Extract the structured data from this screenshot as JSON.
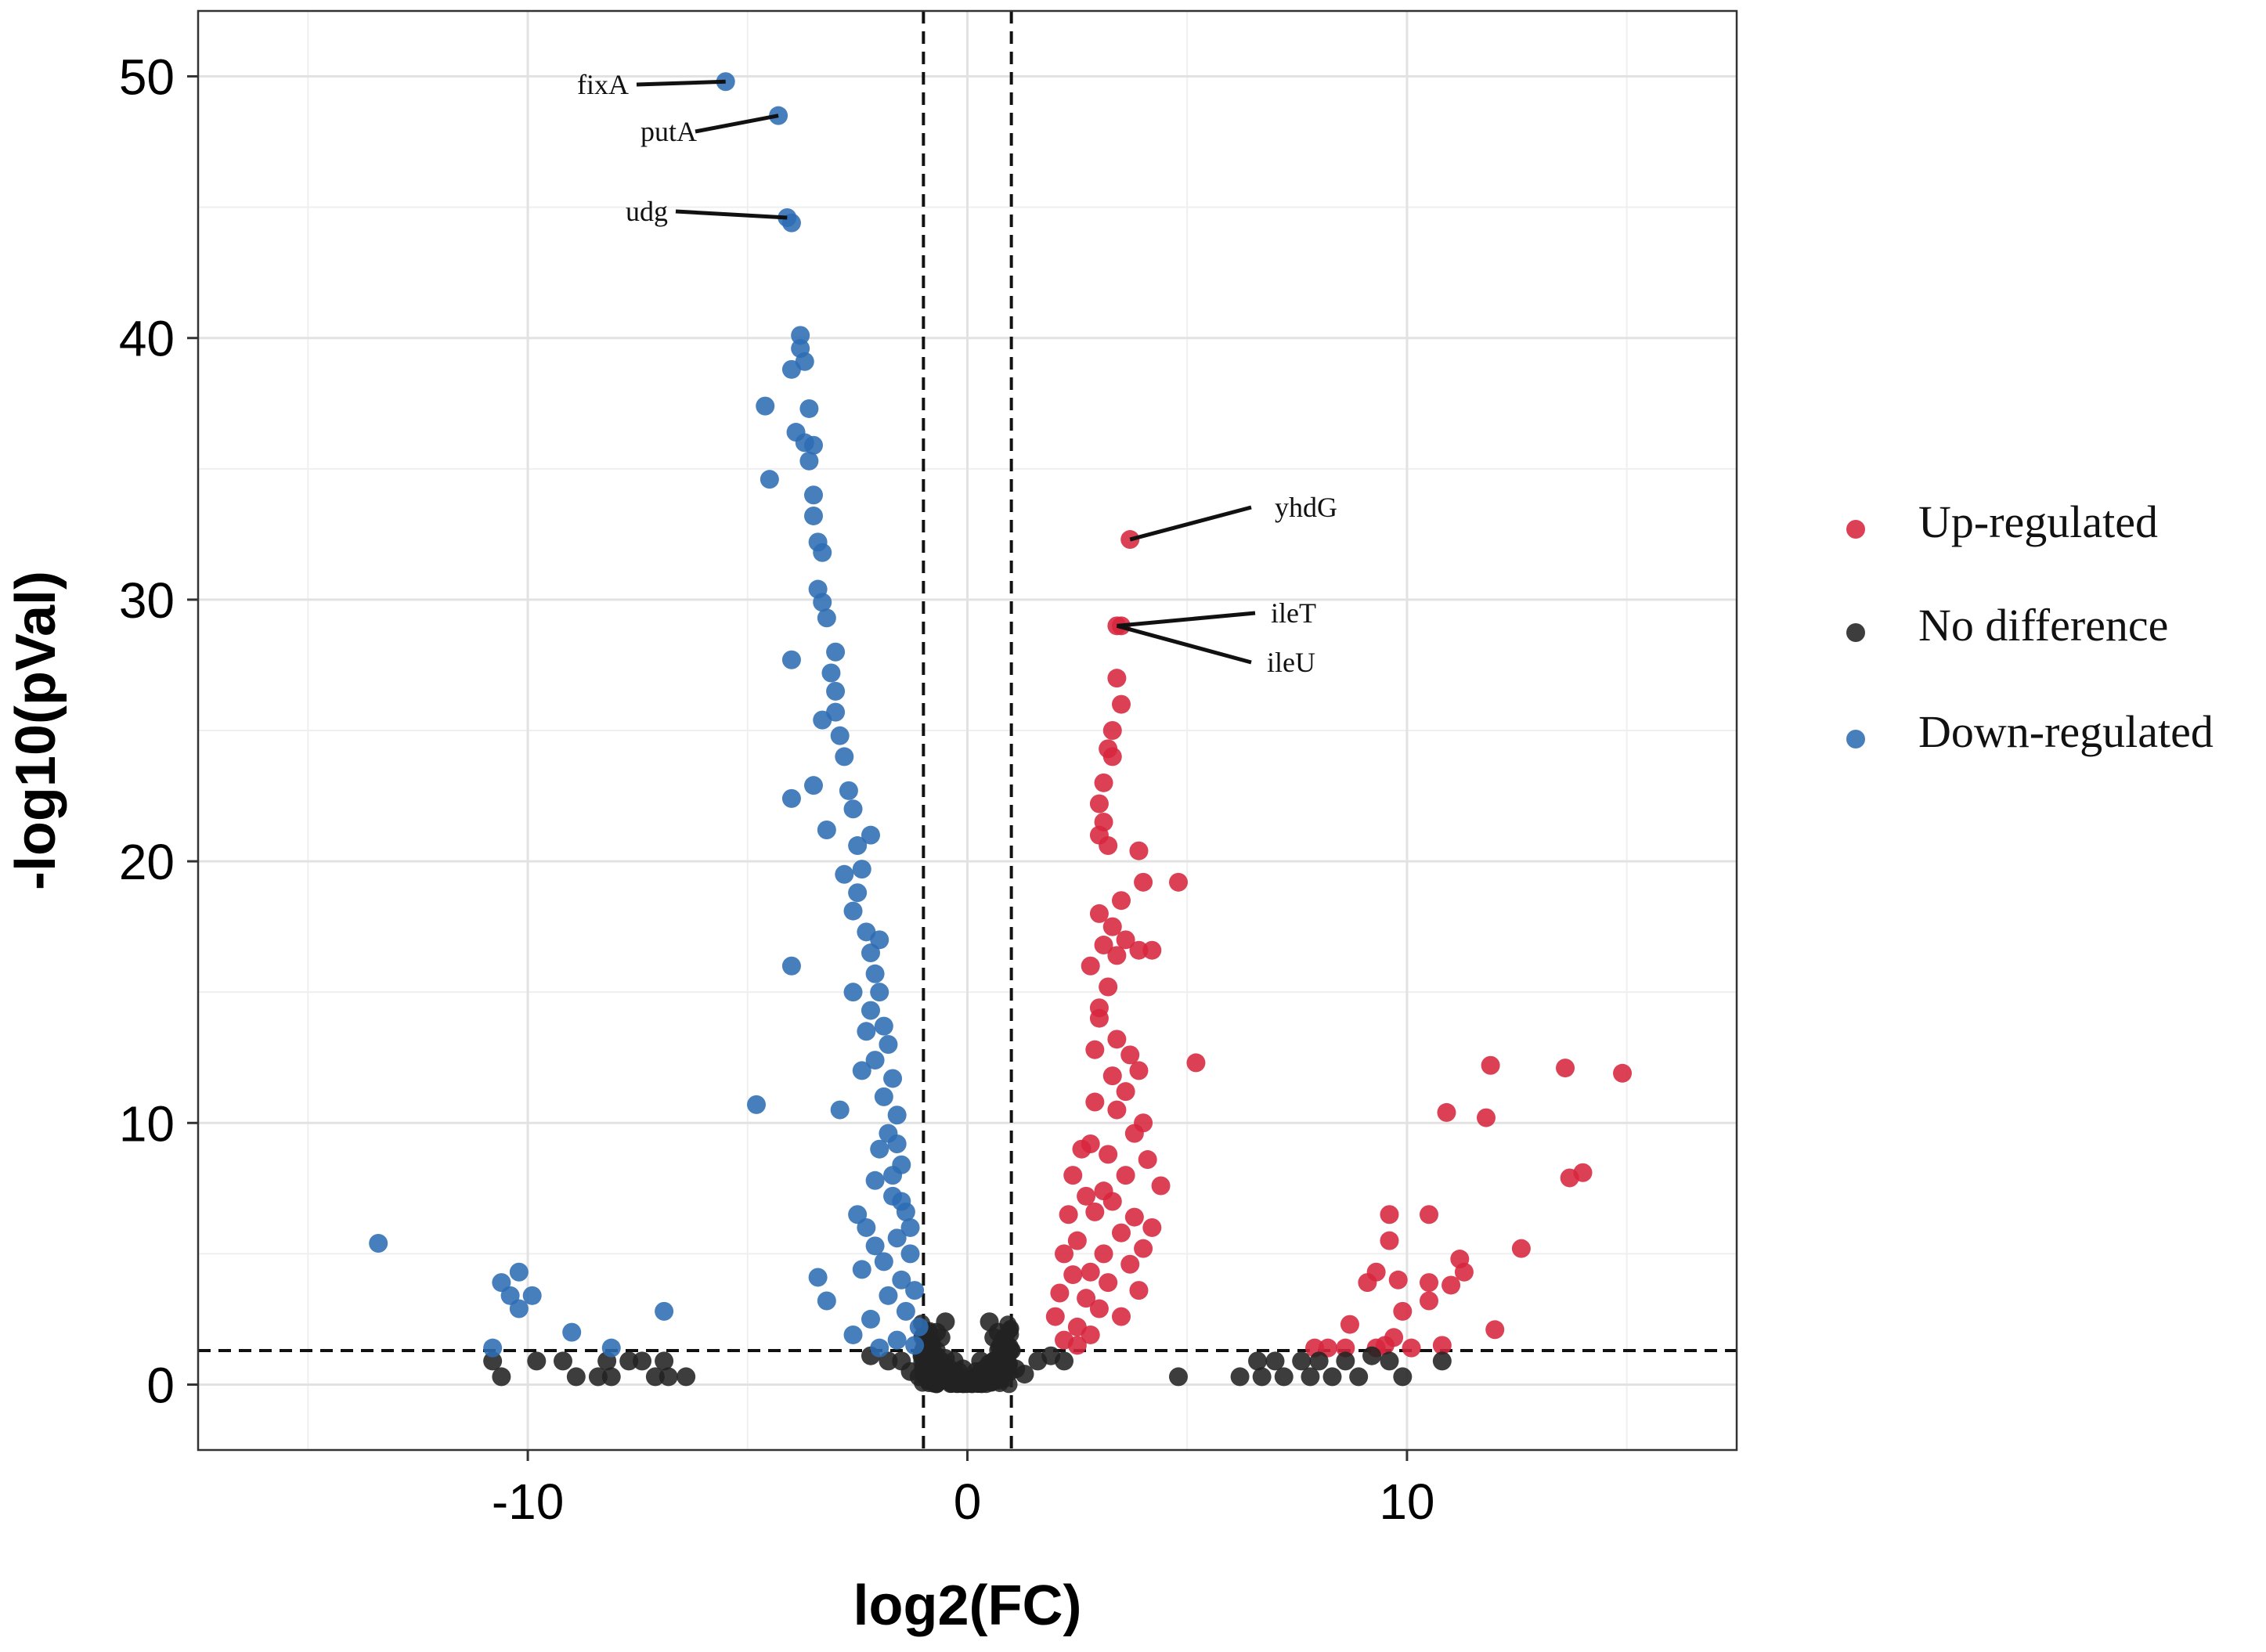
{
  "chart_data": {
    "type": "scatter",
    "title": "",
    "xlabel": "log2(FC)",
    "ylabel": "-log10(pVal)",
    "xlim": [
      -17.5,
      17.5
    ],
    "ylim": [
      -2.5,
      52.5
    ],
    "x_ticks": [
      -10,
      0,
      10
    ],
    "x_tick_labels": [
      "-10",
      "0",
      "10"
    ],
    "y_ticks": [
      0,
      10,
      20,
      30,
      40,
      50
    ],
    "y_tick_labels": [
      "0",
      "10",
      "20",
      "30",
      "40",
      "50"
    ],
    "grid": true,
    "thresholds": {
      "log2fc": [
        -1,
        1
      ],
      "neg_log10_p": 1.3
    },
    "legend_position": "right",
    "series": [
      {
        "name": "Up-regulated",
        "color": "#D7263D",
        "points": [
          [
            3.7,
            32.3
          ],
          [
            3.4,
            29.0
          ],
          [
            3.5,
            29.0
          ],
          [
            3.4,
            27.0
          ],
          [
            3.5,
            26.0
          ],
          [
            3.3,
            25.0
          ],
          [
            3.2,
            24.3
          ],
          [
            3.3,
            24.0
          ],
          [
            3.1,
            23.0
          ],
          [
            3.0,
            22.2
          ],
          [
            3.1,
            21.5
          ],
          [
            3.0,
            21.0
          ],
          [
            3.2,
            20.6
          ],
          [
            3.9,
            20.4
          ],
          [
            4.0,
            19.2
          ],
          [
            4.8,
            19.2
          ],
          [
            3.5,
            18.5
          ],
          [
            3.0,
            18.0
          ],
          [
            3.3,
            17.5
          ],
          [
            3.6,
            17.0
          ],
          [
            3.9,
            16.6
          ],
          [
            4.2,
            16.6
          ],
          [
            3.4,
            16.4
          ],
          [
            2.8,
            16.0
          ],
          [
            3.2,
            15.2
          ],
          [
            3.0,
            14.4
          ],
          [
            3.4,
            13.2
          ],
          [
            3.7,
            12.6
          ],
          [
            3.9,
            12.0
          ],
          [
            5.2,
            12.3
          ],
          [
            3.3,
            11.8
          ],
          [
            3.6,
            11.2
          ],
          [
            2.9,
            10.8
          ],
          [
            3.4,
            10.5
          ],
          [
            4.0,
            10.0
          ],
          [
            3.8,
            9.6
          ],
          [
            2.8,
            9.2
          ],
          [
            3.2,
            8.8
          ],
          [
            4.1,
            8.6
          ],
          [
            3.6,
            8.0
          ],
          [
            4.4,
            7.6
          ],
          [
            3.1,
            7.4
          ],
          [
            3.3,
            7.0
          ],
          [
            2.9,
            6.6
          ],
          [
            3.8,
            6.4
          ],
          [
            4.2,
            6.0
          ],
          [
            3.5,
            5.8
          ],
          [
            4.0,
            5.2
          ],
          [
            3.1,
            5.0
          ],
          [
            3.7,
            4.6
          ],
          [
            2.8,
            4.3
          ],
          [
            3.2,
            3.9
          ],
          [
            3.9,
            3.6
          ],
          [
            2.7,
            3.3
          ],
          [
            3.0,
            2.9
          ],
          [
            3.5,
            2.6
          ],
          [
            2.5,
            2.2
          ],
          [
            2.8,
            1.9
          ],
          [
            2.2,
            1.7
          ],
          [
            2.5,
            1.5
          ],
          [
            2.6,
            9.0
          ],
          [
            2.4,
            8.0
          ],
          [
            2.7,
            7.2
          ],
          [
            2.3,
            6.5
          ],
          [
            2.5,
            5.5
          ],
          [
            2.2,
            5.0
          ],
          [
            2.4,
            4.2
          ],
          [
            2.1,
            3.5
          ],
          [
            2.0,
            2.6
          ],
          [
            2.9,
            12.8
          ],
          [
            3.0,
            14.0
          ],
          [
            3.1,
            16.8
          ],
          [
            11.9,
            12.2
          ],
          [
            13.6,
            12.1
          ],
          [
            14.9,
            11.9
          ],
          [
            10.9,
            10.4
          ],
          [
            11.8,
            10.2
          ],
          [
            14.0,
            8.1
          ],
          [
            13.7,
            7.9
          ],
          [
            9.6,
            6.5
          ],
          [
            10.5,
            6.5
          ],
          [
            9.6,
            5.5
          ],
          [
            12.6,
            5.2
          ],
          [
            11.2,
            4.8
          ],
          [
            9.3,
            4.3
          ],
          [
            11.3,
            4.3
          ],
          [
            9.8,
            4.0
          ],
          [
            9.1,
            3.9
          ],
          [
            10.5,
            3.9
          ],
          [
            11.0,
            3.8
          ],
          [
            10.5,
            3.2
          ],
          [
            9.9,
            2.8
          ],
          [
            12.0,
            2.1
          ],
          [
            8.7,
            2.3
          ],
          [
            9.7,
            1.8
          ],
          [
            10.8,
            1.5
          ],
          [
            9.5,
            1.5
          ],
          [
            8.2,
            1.4
          ],
          [
            8.6,
            1.4
          ],
          [
            9.3,
            1.4
          ],
          [
            10.1,
            1.4
          ],
          [
            7.9,
            1.4
          ]
        ]
      },
      {
        "name": "No difference",
        "color": "#222222",
        "points": [
          [
            -10.8,
            0.9
          ],
          [
            -10.6,
            0.3
          ],
          [
            -9.8,
            0.9
          ],
          [
            -9.2,
            0.9
          ],
          [
            -8.9,
            0.3
          ],
          [
            -8.4,
            0.3
          ],
          [
            -8.2,
            0.9
          ],
          [
            -8.1,
            0.3
          ],
          [
            -7.7,
            0.9
          ],
          [
            -7.4,
            0.9
          ],
          [
            -7.1,
            0.3
          ],
          [
            -6.9,
            0.9
          ],
          [
            -6.8,
            0.3
          ],
          [
            -6.4,
            0.3
          ],
          [
            -2.2,
            1.1
          ],
          [
            -1.8,
            0.9
          ],
          [
            -1.5,
            0.9
          ],
          [
            -1.3,
            0.5
          ],
          [
            -1.1,
            0.3
          ],
          [
            -0.9,
            0.2
          ],
          [
            -0.7,
            0.7
          ],
          [
            -0.5,
            1.0
          ],
          [
            -0.3,
            0.4
          ],
          [
            -0.1,
            0.6
          ],
          [
            0.1,
            0.2
          ],
          [
            0.3,
            0.5
          ],
          [
            0.5,
            0.8
          ],
          [
            0.7,
            0.3
          ],
          [
            0.9,
            0.9
          ],
          [
            1.1,
            0.6
          ],
          [
            1.3,
            0.4
          ],
          [
            1.6,
            0.9
          ],
          [
            1.9,
            1.1
          ],
          [
            2.2,
            0.9
          ],
          [
            4.8,
            0.3
          ],
          [
            6.2,
            0.3
          ],
          [
            6.6,
            0.9
          ],
          [
            6.7,
            0.3
          ],
          [
            7.0,
            0.9
          ],
          [
            7.2,
            0.3
          ],
          [
            7.6,
            0.9
          ],
          [
            7.8,
            0.3
          ],
          [
            8.0,
            0.9
          ],
          [
            8.3,
            0.3
          ],
          [
            8.6,
            0.9
          ],
          [
            8.9,
            0.3
          ],
          [
            9.2,
            1.1
          ],
          [
            9.6,
            0.9
          ],
          [
            9.9,
            0.3
          ],
          [
            10.8,
            0.9
          ],
          [
            -0.8,
            1.2
          ],
          [
            -0.6,
            0.9
          ],
          [
            -0.4,
            0.6
          ],
          [
            -0.2,
            0.3
          ],
          [
            0.0,
            0.1
          ],
          [
            0.2,
            0.3
          ],
          [
            0.4,
            0.6
          ],
          [
            0.6,
            0.9
          ],
          [
            0.8,
            1.2
          ],
          [
            -1.0,
            1.3
          ],
          [
            1.0,
            1.3
          ],
          [
            -0.9,
            1.5
          ],
          [
            0.9,
            1.5
          ],
          [
            -0.6,
            1.8
          ],
          [
            0.6,
            1.8
          ],
          [
            -0.5,
            2.4
          ],
          [
            0.5,
            2.4
          ],
          [
            -0.7,
            2.0
          ],
          [
            0.7,
            2.0
          ],
          [
            -0.3,
            0.9
          ],
          [
            0.3,
            0.9
          ],
          [
            -0.5,
            0.4
          ],
          [
            0.5,
            0.4
          ],
          [
            -0.2,
            0.5
          ],
          [
            0.2,
            0.5
          ],
          [
            -0.1,
            0.2
          ],
          [
            0.1,
            0.2
          ]
        ]
      },
      {
        "name": "Down-regulated",
        "color": "#2E6DB4",
        "points": [
          [
            -5.5,
            49.8
          ],
          [
            -4.3,
            48.5
          ],
          [
            -4.1,
            44.6
          ],
          [
            -4.0,
            44.4
          ],
          [
            -3.8,
            40.1
          ],
          [
            -3.8,
            39.6
          ],
          [
            -3.7,
            39.1
          ],
          [
            -4.0,
            38.8
          ],
          [
            -4.6,
            37.4
          ],
          [
            -3.6,
            37.3
          ],
          [
            -3.9,
            36.4
          ],
          [
            -3.7,
            36.0
          ],
          [
            -3.5,
            35.9
          ],
          [
            -3.6,
            35.3
          ],
          [
            -4.5,
            34.6
          ],
          [
            -3.5,
            34.0
          ],
          [
            -3.5,
            33.2
          ],
          [
            -3.4,
            32.2
          ],
          [
            -3.3,
            31.8
          ],
          [
            -3.4,
            30.4
          ],
          [
            -3.3,
            29.9
          ],
          [
            -3.2,
            29.3
          ],
          [
            -3.0,
            28.0
          ],
          [
            -4.0,
            27.7
          ],
          [
            -3.1,
            27.2
          ],
          [
            -3.0,
            26.5
          ],
          [
            -3.0,
            25.7
          ],
          [
            -3.3,
            25.4
          ],
          [
            -2.9,
            24.8
          ],
          [
            -2.8,
            24.0
          ],
          [
            -3.5,
            22.9
          ],
          [
            -4.0,
            22.4
          ],
          [
            -2.7,
            22.7
          ],
          [
            -2.6,
            22.0
          ],
          [
            -3.2,
            21.2
          ],
          [
            -2.5,
            20.6
          ],
          [
            -2.4,
            19.7
          ],
          [
            -2.5,
            18.8
          ],
          [
            -2.6,
            18.1
          ],
          [
            -2.3,
            17.3
          ],
          [
            -2.2,
            16.5
          ],
          [
            -4.0,
            16.0
          ],
          [
            -2.1,
            15.7
          ],
          [
            -2.0,
            15.0
          ],
          [
            -2.2,
            14.3
          ],
          [
            -1.9,
            13.7
          ],
          [
            -1.8,
            13.0
          ],
          [
            -2.1,
            12.4
          ],
          [
            -1.7,
            11.7
          ],
          [
            -1.9,
            11.0
          ],
          [
            -4.8,
            10.7
          ],
          [
            -2.9,
            10.5
          ],
          [
            -1.6,
            10.3
          ],
          [
            -1.8,
            9.6
          ],
          [
            -2.0,
            9.0
          ],
          [
            -1.5,
            8.4
          ],
          [
            -2.1,
            7.8
          ],
          [
            -1.7,
            7.2
          ],
          [
            -1.4,
            6.6
          ],
          [
            -2.5,
            6.5
          ],
          [
            -2.3,
            6.0
          ],
          [
            -1.6,
            5.6
          ],
          [
            -2.1,
            5.3
          ],
          [
            -1.3,
            5.0
          ],
          [
            -1.9,
            4.7
          ],
          [
            -2.4,
            4.4
          ],
          [
            -1.5,
            4.0
          ],
          [
            -1.2,
            3.6
          ],
          [
            -3.4,
            4.1
          ],
          [
            -1.8,
            3.4
          ],
          [
            -3.2,
            3.2
          ],
          [
            -1.4,
            2.8
          ],
          [
            -2.2,
            2.5
          ],
          [
            -1.1,
            2.2
          ],
          [
            -2.6,
            1.9
          ],
          [
            -1.6,
            1.7
          ],
          [
            -1.2,
            1.5
          ],
          [
            -2.0,
            1.4
          ],
          [
            -13.4,
            5.4
          ],
          [
            -10.2,
            4.3
          ],
          [
            -10.6,
            3.9
          ],
          [
            -9.9,
            3.4
          ],
          [
            -10.4,
            3.4
          ],
          [
            -10.2,
            2.9
          ],
          [
            -9.0,
            2.0
          ],
          [
            -8.1,
            1.4
          ],
          [
            -6.9,
            2.8
          ],
          [
            -10.8,
            1.4
          ],
          [
            -2.4,
            12.0
          ],
          [
            -2.3,
            13.5
          ],
          [
            -2.6,
            15.0
          ],
          [
            -2.0,
            17.0
          ],
          [
            -2.8,
            19.5
          ],
          [
            -2.2,
            21.0
          ],
          [
            -1.7,
            8.0
          ],
          [
            -1.6,
            9.2
          ],
          [
            -1.5,
            7.0
          ],
          [
            -1.3,
            6.0
          ]
        ]
      }
    ],
    "annotations": [
      {
        "text": "fixA",
        "x": -5.5,
        "y": 49.8
      },
      {
        "text": "putA",
        "x": -4.3,
        "y": 48.5
      },
      {
        "text": "udg",
        "x": -4.1,
        "y": 44.6
      },
      {
        "text": "yhdG",
        "x": 3.7,
        "y": 32.3
      },
      {
        "text": "ileT",
        "x": 3.4,
        "y": 29.0
      },
      {
        "text": "ileU",
        "x": 3.4,
        "y": 29.0
      }
    ]
  }
}
